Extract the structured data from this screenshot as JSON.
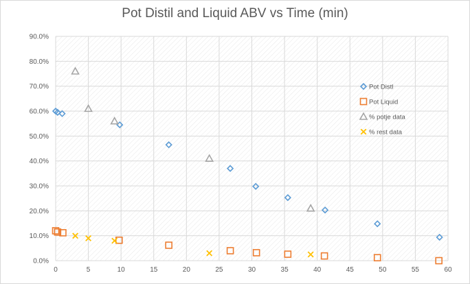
{
  "colors": {
    "pot_distil": "#5b9bd5",
    "pot_liquid": "#ed7d31",
    "potje": "#a5a5a5",
    "rest": "#ffc000",
    "grid": "#d9d9d9",
    "text": "#595959"
  },
  "chart_data": {
    "type": "scatter",
    "title": "Pot Distil and Liquid ABV vs Time (min)",
    "xlim": [
      0,
      60
    ],
    "ylim": [
      0,
      0.9
    ],
    "x_ticks": [
      "0",
      "5",
      "10",
      "15",
      "20",
      "25",
      "30",
      "35",
      "40",
      "45",
      "50",
      "55",
      "60"
    ],
    "y_ticks": [
      "0.0%",
      "10.0%",
      "20.0%",
      "30.0%",
      "40.0%",
      "50.0%",
      "60.0%",
      "70.0%",
      "80.0%",
      "90.0%"
    ],
    "grid": true,
    "legend_position": "right",
    "series": [
      {
        "name": "Pot Distl",
        "marker": "diamond",
        "points": [
          [
            0,
            0.6
          ],
          [
            0.3,
            0.595
          ],
          [
            1,
            0.59
          ],
          [
            9.8,
            0.545
          ],
          [
            17.3,
            0.465
          ],
          [
            26.7,
            0.37
          ],
          [
            30.6,
            0.298
          ],
          [
            35.5,
            0.253
          ],
          [
            41.2,
            0.203
          ],
          [
            49.2,
            0.148
          ],
          [
            58.7,
            0.094
          ]
        ]
      },
      {
        "name": "Pot Liquid",
        "marker": "square",
        "points": [
          [
            0,
            0.12
          ],
          [
            0.3,
            0.115
          ],
          [
            1.1,
            0.112
          ],
          [
            9.7,
            0.082
          ],
          [
            17.3,
            0.062
          ],
          [
            26.7,
            0.04
          ],
          [
            30.7,
            0.032
          ],
          [
            35.5,
            0.026
          ],
          [
            41.1,
            0.019
          ],
          [
            49.2,
            0.012
          ],
          [
            58.6,
            0.0
          ]
        ]
      },
      {
        "name": "% potje data",
        "marker": "triangle",
        "points": [
          [
            3,
            0.76
          ],
          [
            5,
            0.61
          ],
          [
            9,
            0.56
          ],
          [
            23.5,
            0.41
          ],
          [
            39,
            0.21
          ]
        ]
      },
      {
        "name": "% rest data",
        "marker": "x",
        "points": [
          [
            3,
            0.1
          ],
          [
            5,
            0.09
          ],
          [
            9,
            0.08
          ],
          [
            23.5,
            0.03
          ],
          [
            39,
            0.025
          ]
        ]
      }
    ]
  }
}
